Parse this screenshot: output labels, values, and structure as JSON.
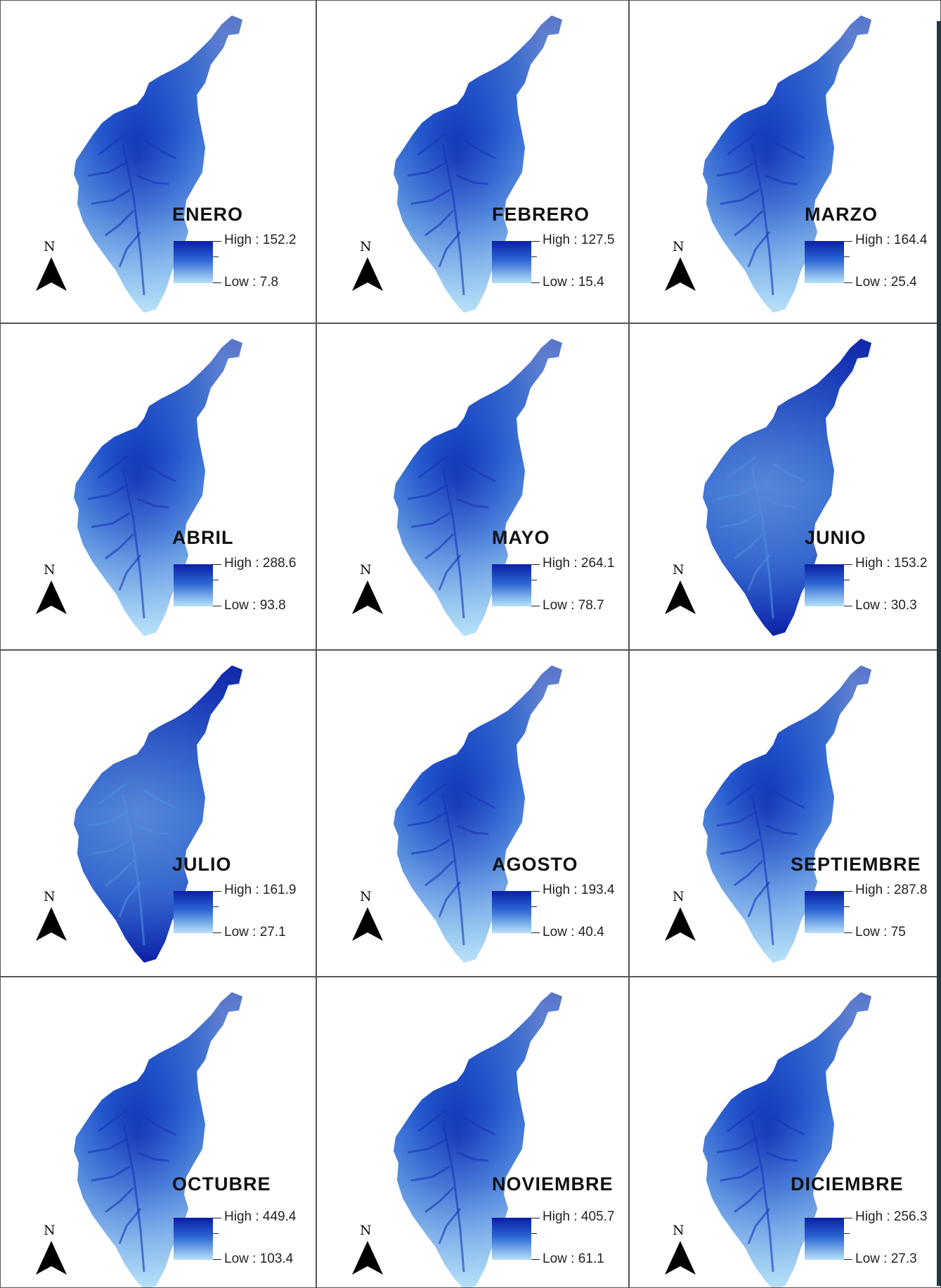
{
  "colors": {
    "high": "#0b1fa6",
    "mid": "#2b66d4",
    "low": "#b8e2f8",
    "border": "#555555"
  },
  "north_label": "N",
  "maps": [
    {
      "month": "ENERO",
      "high_label": "High : 152.2",
      "low_label": "Low : 7.8"
    },
    {
      "month": "FEBRERO",
      "high_label": "High : 127.5",
      "low_label": "Low : 15.4"
    },
    {
      "month": "MARZO",
      "high_label": "High : 164.4",
      "low_label": "Low : 25.4"
    },
    {
      "month": "ABRIL",
      "high_label": "High : 288.6",
      "low_label": "Low : 93.8"
    },
    {
      "month": "MAYO",
      "high_label": "High : 264.1",
      "low_label": "Low : 78.7"
    },
    {
      "month": "JUNIO",
      "high_label": "High : 153.2",
      "low_label": "Low : 30.3"
    },
    {
      "month": "JULIO",
      "high_label": "High : 161.9",
      "low_label": "Low : 27.1"
    },
    {
      "month": "AGOSTO",
      "high_label": "High : 193.4",
      "low_label": "Low : 40.4"
    },
    {
      "month": "SEPTIEMBRE",
      "high_label": "High : 287.8",
      "low_label": "Low : 75"
    },
    {
      "month": "OCTUBRE",
      "high_label": "High : 449.4",
      "low_label": "Low : 103.4"
    },
    {
      "month": "NOVIEMBRE",
      "high_label": "High : 405.7",
      "low_label": "Low : 61.1"
    },
    {
      "month": "DICIEMBRE",
      "high_label": "High : 256.3",
      "low_label": "Low : 27.3"
    }
  ]
}
